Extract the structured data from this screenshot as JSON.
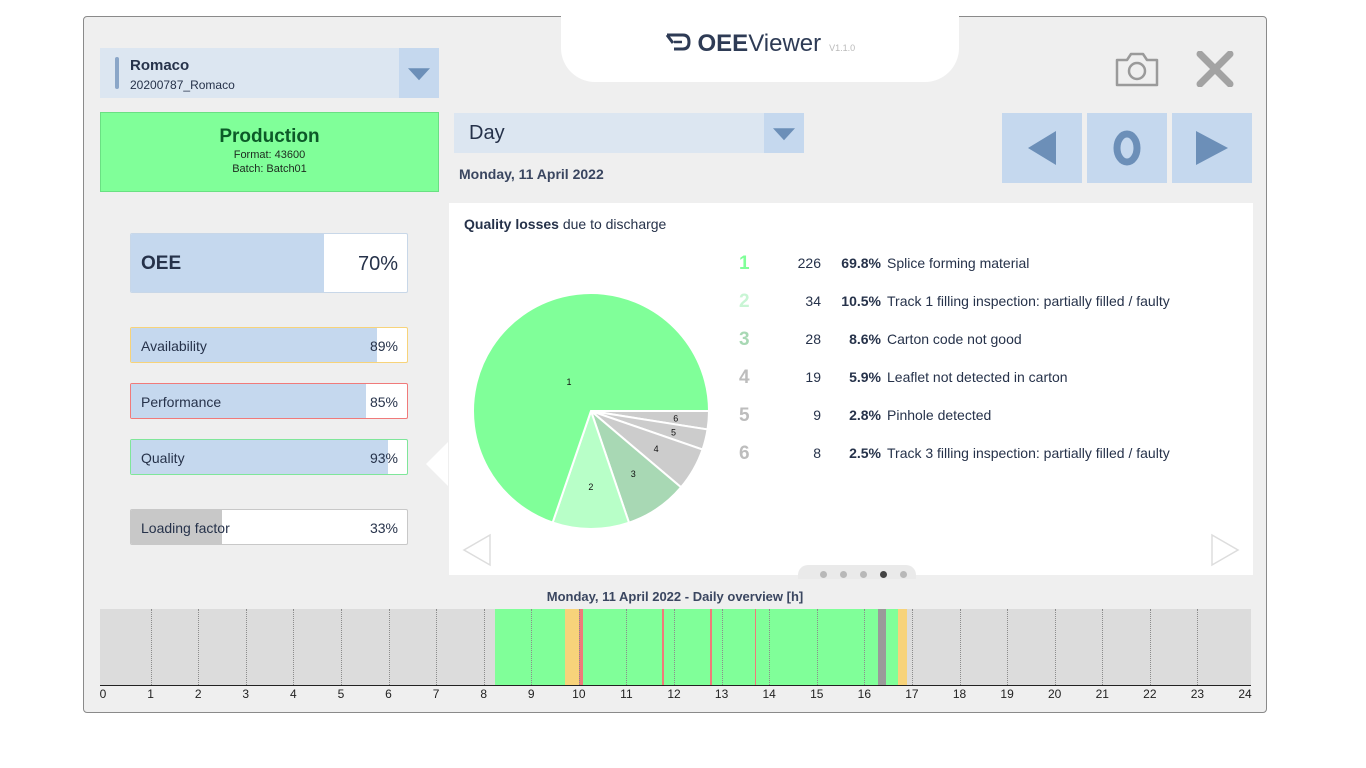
{
  "app": {
    "title_bold": "OEE",
    "title_rest": "Viewer",
    "version": "V1.1.0"
  },
  "machine": {
    "name": "Romaco",
    "id": "20200787_Romaco"
  },
  "status": {
    "state": "Production",
    "format": "Format: 43600",
    "batch": "Batch: Batch01",
    "color": "#80ff99"
  },
  "kpis": {
    "oee": {
      "label": "OEE",
      "value": "70%",
      "fraction": 0.7
    },
    "availability": {
      "label": "Availability",
      "value": "89%",
      "fraction": 0.89,
      "accent": "#f7d37a"
    },
    "performance": {
      "label": "Performance",
      "value": "85%",
      "fraction": 0.85,
      "accent": "#f07a7a"
    },
    "quality": {
      "label": "Quality",
      "value": "93%",
      "fraction": 0.93,
      "accent": "#7fe69a"
    },
    "loading": {
      "label": "Loading factor",
      "value": "33%",
      "fraction": 0.33
    }
  },
  "period": {
    "selected": "Day",
    "date": "Monday, 11 April 2022"
  },
  "nav": {
    "center_label": "0"
  },
  "quality_panel": {
    "title_bold": "Quality losses",
    "title_rest": " due to discharge",
    "page_count": 5,
    "active_page": 3
  },
  "chart_data": {
    "type": "pie",
    "slices": [
      {
        "rank": "1",
        "count": "226",
        "percent": "69.8%",
        "value": 69.8,
        "label": "Splice forming material",
        "color": "#80ff99",
        "rank_color": "#80ff99"
      },
      {
        "rank": "2",
        "count": "34",
        "percent": "10.5%",
        "value": 10.5,
        "label": "Track 1 filling inspection: partially filled / faulty",
        "color": "#b8ffc8",
        "rank_color": "#c8f5d4"
      },
      {
        "rank": "3",
        "count": "28",
        "percent": "8.6%",
        "value": 8.6,
        "label": "Carton code not good",
        "color": "#a8d8b4",
        "rank_color": "#a8d8b4"
      },
      {
        "rank": "4",
        "count": "19",
        "percent": "5.9%",
        "value": 5.9,
        "label": "Leaflet not detected in carton",
        "color": "#cccccc",
        "rank_color": "#bdbdbd"
      },
      {
        "rank": "5",
        "count": "9",
        "percent": "2.8%",
        "value": 2.8,
        "label": "Pinhole detected",
        "color": "#cccccc",
        "rank_color": "#bdbdbd"
      },
      {
        "rank": "6",
        "count": "8",
        "percent": "2.5%",
        "value": 2.5,
        "label": "Track 3 filling inspection: partially filled / faulty",
        "color": "#cccccc",
        "rank_color": "#bdbdbd"
      }
    ]
  },
  "timeline": {
    "title": "Monday, 11 April 2022 - Daily overview [h]",
    "ticks": [
      "0",
      "1",
      "2",
      "3",
      "4",
      "5",
      "6",
      "7",
      "8",
      "9",
      "10",
      "11",
      "12",
      "13",
      "14",
      "15",
      "16",
      "17",
      "18",
      "19",
      "20",
      "21",
      "22",
      "23",
      "24"
    ],
    "range_hours": [
      0,
      24
    ],
    "colors": {
      "production": "#80ff99",
      "waiting": "#f7d37a",
      "fault": "#f07a7a",
      "off": "#9a9a9a",
      "none": "#dcdcdc"
    },
    "segments": [
      {
        "start": 8.23,
        "end": 9.7,
        "state": "production"
      },
      {
        "start": 9.7,
        "end": 10.0,
        "state": "waiting"
      },
      {
        "start": 10.0,
        "end": 10.08,
        "state": "fault"
      },
      {
        "start": 10.08,
        "end": 16.28,
        "state": "production"
      },
      {
        "start": 16.28,
        "end": 16.45,
        "state": "off"
      },
      {
        "start": 16.45,
        "end": 16.7,
        "state": "production"
      },
      {
        "start": 16.7,
        "end": 16.9,
        "state": "waiting"
      },
      {
        "start": 11.75,
        "end": 11.8,
        "state": "fault"
      },
      {
        "start": 12.75,
        "end": 12.79,
        "state": "fault"
      },
      {
        "start": 13.7,
        "end": 13.73,
        "state": "fault"
      }
    ]
  }
}
